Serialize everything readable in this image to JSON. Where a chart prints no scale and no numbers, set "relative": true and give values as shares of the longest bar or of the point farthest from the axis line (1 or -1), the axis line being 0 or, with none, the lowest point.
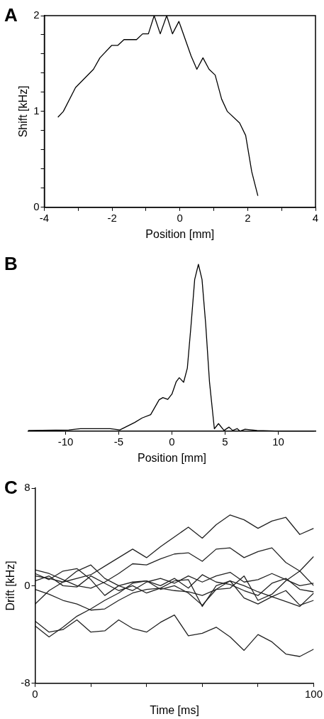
{
  "chart_data": [
    {
      "type": "line",
      "annotations": [
        "A"
      ],
      "xlabel": "Position [mm]",
      "ylabel": "Shift [kHz]",
      "x": [
        -3.6,
        -3.44,
        -3.08,
        -2.55,
        -2.36,
        -2.01,
        -1.83,
        -1.65,
        -1.28,
        -1.1,
        -0.93,
        -0.76,
        -0.58,
        -0.39,
        -0.22,
        -0.03,
        0.33,
        0.5,
        0.68,
        0.86,
        1.04,
        1.23,
        1.4,
        1.76,
        1.94,
        2.12,
        2.3
      ],
      "values": [
        0.94,
        1.0,
        1.25,
        1.44,
        1.56,
        1.69,
        1.69,
        1.75,
        1.75,
        1.81,
        1.81,
        2.0,
        1.81,
        2.0,
        1.81,
        1.94,
        1.58,
        1.44,
        1.56,
        1.44,
        1.38,
        1.13,
        1.0,
        0.88,
        0.75,
        0.37,
        0.12
      ],
      "color": "#000000",
      "xlim": [
        -4,
        4
      ],
      "xticks": [
        -4,
        {
          "value": -3,
          "label": null
        },
        -2,
        {
          "value": -1,
          "label": null
        },
        0,
        {
          "value": 1,
          "label": null
        },
        2,
        {
          "value": 3,
          "label": null
        },
        4
      ],
      "ylim": [
        0,
        2
      ],
      "yticks": [
        0,
        {
          "value": 0.2,
          "label": null
        },
        {
          "value": 0.4,
          "label": null
        },
        {
          "value": 0.6,
          "label": null
        },
        {
          "value": 0.8,
          "label": null
        },
        1,
        {
          "value": 1.2,
          "label": null
        },
        {
          "value": 1.4,
          "label": null
        },
        {
          "value": 1.6,
          "label": null
        },
        {
          "value": 1.8,
          "label": null
        },
        2
      ]
    },
    {
      "type": "line",
      "annotations": [
        "B"
      ],
      "xlabel": "Position [mm]",
      "relative": true,
      "x": [
        -13.5,
        -9.7,
        -8.6,
        -5.8,
        -4.9,
        -3.5,
        -2.8,
        -2.0,
        -1.2,
        -0.85,
        -0.39,
        0,
        0.41,
        0.69,
        1.1,
        1.45,
        1.8,
        2.14,
        2.49,
        2.83,
        3.18,
        3.53,
        3.99,
        4.38,
        4.9,
        5.37,
        5.71,
        6.13,
        6.4,
        6.87,
        8.0,
        10.3,
        13.4
      ],
      "values": [
        0.004,
        0.007,
        0.015,
        0.015,
        0.007,
        0.052,
        0.079,
        0.099,
        0.188,
        0.201,
        0.19,
        0.222,
        0.297,
        0.32,
        0.293,
        0.378,
        0.637,
        0.909,
        1.0,
        0.909,
        0.637,
        0.297,
        0.014,
        0.045,
        0.004,
        0.024,
        0.004,
        0.015,
        0,
        0.011,
        0.004,
        0,
        0
      ],
      "color": "#000000",
      "xlim": [
        -13.5,
        13.5
      ],
      "xticks": [
        -10,
        -5,
        0,
        5,
        10
      ]
    },
    {
      "type": "line",
      "annotations": [
        "C"
      ],
      "xlabel": "Time [ms]",
      "ylabel": "Drift [kHz]",
      "x": [
        0,
        5,
        10,
        15,
        20,
        25,
        30,
        35,
        40,
        45,
        50,
        55,
        60,
        65,
        70,
        75,
        80,
        85,
        90,
        95,
        100
      ],
      "series": [
        {
          "color": "#222222",
          "values": [
            0.8,
            0.6,
            0.3,
            0.6,
            0.9,
            1.6,
            2.3,
            3.0,
            2.3,
            3.2,
            4.0,
            4.8,
            3.9,
            5.0,
            5.8,
            5.4,
            4.7,
            5.3,
            5.6,
            4.2,
            4.7
          ]
        },
        {
          "color": "#222222",
          "values": [
            1.3,
            1.0,
            0.5,
            0.0,
            -0.2,
            0.3,
            1.0,
            1.8,
            1.7,
            2.2,
            2.6,
            2.7,
            2.0,
            3.0,
            3.1,
            2.3,
            2.8,
            3.1,
            1.9,
            1.2,
            2.4
          ]
        },
        {
          "color": "#222222",
          "values": [
            -2.9,
            -3.8,
            -3.6,
            -2.8,
            -3.8,
            -3.7,
            -2.8,
            -3.5,
            -3.8,
            -3.0,
            -2.4,
            -4.1,
            -3.9,
            -3.4,
            -4.2,
            -5.3,
            -4.0,
            -4.6,
            -5.6,
            -5.8,
            -5.2
          ]
        },
        {
          "color": "#222222",
          "values": [
            -3.3,
            -4.2,
            -3.4,
            -2.5,
            -1.9,
            -1.2,
            -0.6,
            0.2,
            0.4,
            0.0,
            0.6,
            -0.2,
            0.9,
            0.3,
            0.1,
            -0.4,
            -0.8,
            0.2,
            0.6,
            -0.3,
            -0.5
          ]
        },
        {
          "color": "#222222",
          "values": [
            -1.5,
            -0.4,
            0.3,
            1.2,
            1.7,
            0.6,
            0.0,
            0.3,
            0.4,
            -0.3,
            0.0,
            -0.6,
            -1.6,
            -0.3,
            0.4,
            -1.0,
            -1.5,
            -0.9,
            -0.4,
            -1.6,
            -1.2
          ]
        },
        {
          "color": "#222222",
          "values": [
            -0.3,
            -0.7,
            -1.2,
            -1.5,
            -2.0,
            -1.9,
            -1.2,
            -0.6,
            -0.3,
            -0.2,
            0.4,
            0.5,
            -1.7,
            0.0,
            0.4,
            0.0,
            -0.5,
            -0.9,
            -1.3,
            -1.7,
            -0.6
          ]
        },
        {
          "color": "#222222",
          "values": [
            1.0,
            0.5,
            1.2,
            1.4,
            0.5,
            -0.8,
            0.0,
            -0.4,
            0.3,
            0.6,
            0.2,
            0.8,
            0.3,
            0.8,
            1.1,
            0.3,
            0.5,
            1.0,
            0.5,
            0.0,
            0.2
          ]
        },
        {
          "color": "#222222",
          "values": [
            0.4,
            0.8,
            0.0,
            -0.1,
            0.8,
            0.2,
            -0.4,
            0.0,
            -0.6,
            -0.2,
            -0.4,
            -0.5,
            -0.8,
            -0.3,
            -0.2,
            0.8,
            -1.2,
            -0.7,
            0.4,
            1.2,
            0.0
          ]
        }
      ],
      "xlim": [
        0,
        100
      ],
      "xticks": [
        0,
        {
          "value": 20,
          "label": null
        },
        {
          "value": 40,
          "label": null
        },
        {
          "value": 60,
          "label": null
        },
        {
          "value": 80,
          "label": null
        },
        100
      ],
      "ylim": [
        -8,
        8
      ],
      "yticks": [
        -8,
        0,
        8
      ]
    }
  ]
}
